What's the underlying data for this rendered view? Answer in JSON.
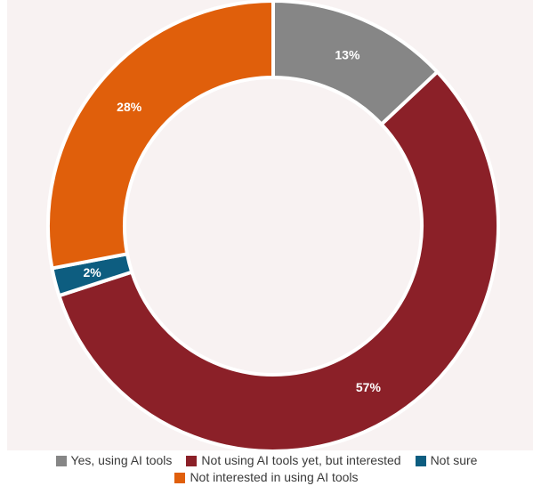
{
  "chart_data": {
    "type": "pie",
    "title": "",
    "categories": [
      "Yes, using AI tools",
      "Not using AI tools yet, but interested",
      "Not sure",
      "Not interested in using AI tools"
    ],
    "values": [
      13,
      57,
      2,
      28
    ],
    "labels": [
      "13%",
      "57%",
      "2%",
      "28%"
    ],
    "colors": [
      "#868686",
      "#8b2028",
      "#0d5d80",
      "#e05f0b"
    ],
    "donut": true,
    "legend_position": "bottom"
  }
}
